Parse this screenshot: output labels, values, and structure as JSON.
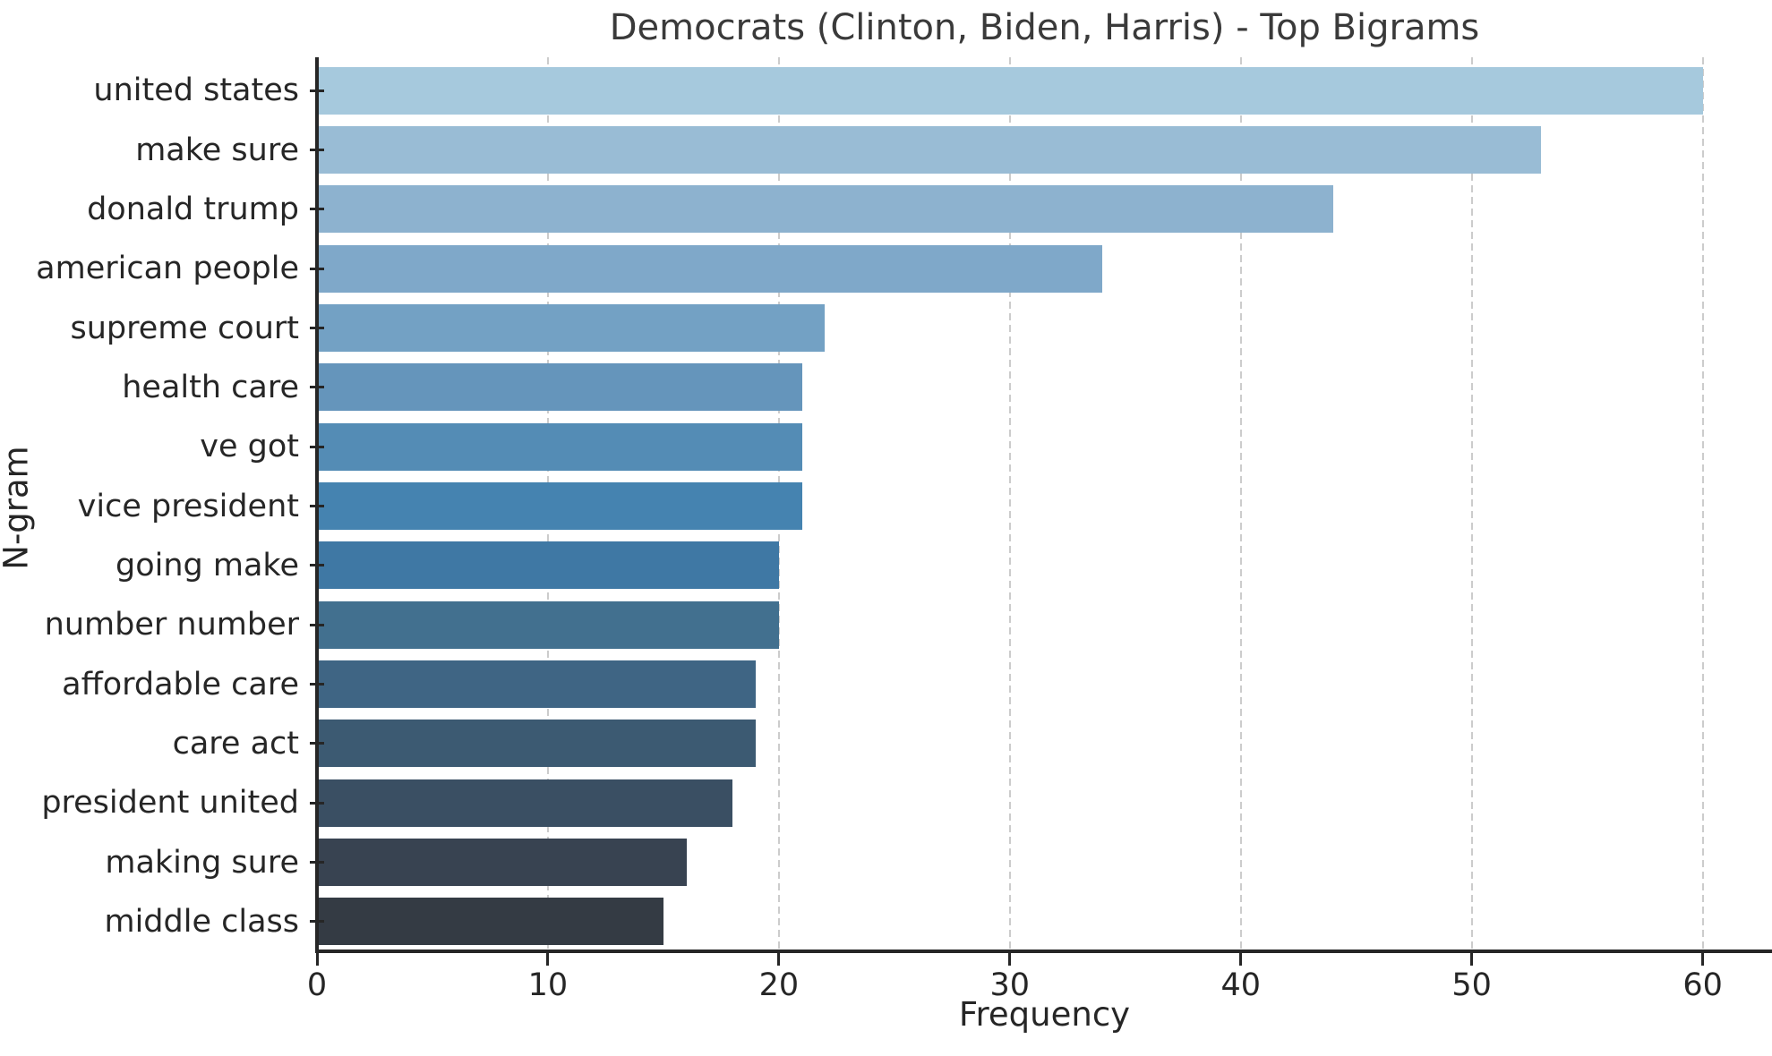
{
  "chart_data": {
    "type": "bar",
    "orientation": "horizontal",
    "title": "Democrats (Clinton, Biden, Harris) - Top Bigrams",
    "xlabel": "Frequency",
    "ylabel": "N-gram",
    "categories": [
      "united states",
      "make sure",
      "donald trump",
      "american people",
      "supreme court",
      "health care",
      "ve got",
      "vice president",
      "going make",
      "number number",
      "affordable care",
      "care act",
      "president united",
      "making sure",
      "middle class"
    ],
    "values": [
      60,
      53,
      44,
      34,
      22,
      21,
      21,
      21,
      20,
      20,
      19,
      19,
      18,
      16,
      15
    ],
    "bar_colors": [
      "#a6c9dd",
      "#99bcd5",
      "#8db2cf",
      "#7fa8c9",
      "#73a1c4",
      "#6595bb",
      "#548cb5",
      "#4583b0",
      "#3f78a4",
      "#42708f",
      "#3f6584",
      "#3c5a72",
      "#3a4f63",
      "#384351",
      "#343b44"
    ],
    "x_ticks": [
      0,
      10,
      20,
      30,
      40,
      50,
      60
    ],
    "xlim": [
      0,
      63
    ],
    "grid": "vertical-dashed",
    "legend": "none"
  },
  "style": {
    "background": "#ffffff",
    "grid_color": "#cccccc",
    "spine_color": "#262626",
    "tick_text_color": "#262626",
    "title_color": "#3a3a3a"
  }
}
